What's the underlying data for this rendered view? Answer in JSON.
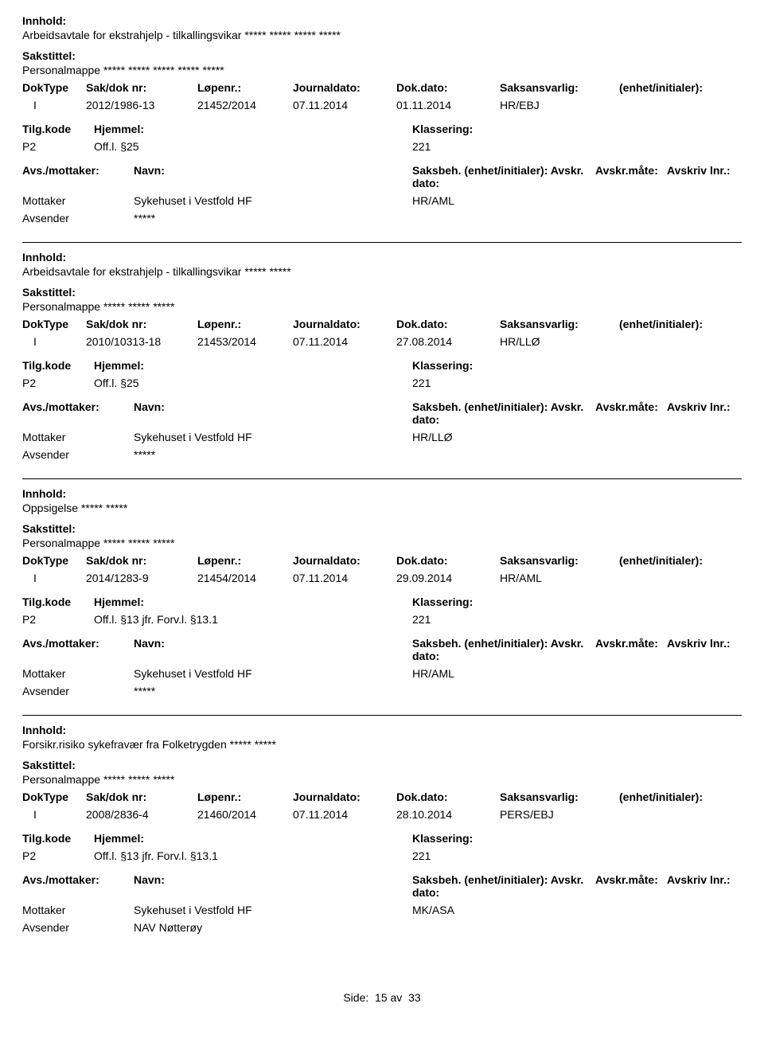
{
  "labels": {
    "innhold": "Innhold:",
    "sakstittel": "Sakstittel:",
    "hdr1": [
      "DokType",
      "Sak/dok nr:",
      "Løpenr.:",
      "Journaldato:",
      "Dok.dato:",
      "Saksansvarlig:",
      "(enhet/initialer):"
    ],
    "hdr2_left": "Tilg.kode",
    "hdr2_mid": "Hjemmel:",
    "hdr2_right": "Klassering:",
    "hdr3_left": "Avs./mottaker:",
    "hdr3_navn": "Navn:",
    "hdr3_saksbeh": "Saksbeh.",
    "hdr3_enhet": "(enhet/initialer):",
    "hdr3_avskrdato": "Avskr. dato:",
    "hdr3_avskrmate": "Avskr.måte:",
    "hdr3_avskrivlnr": "Avskriv lnr.:",
    "mottaker": "Mottaker",
    "avsender": "Avsender",
    "side": "Side:",
    "av": "av"
  },
  "footer": {
    "page": "15",
    "total": "33"
  },
  "records": [
    {
      "innhold": "Arbeidsavtale for ekstrahjelp - tilkallingsvikar ***** ***** ***** *****",
      "sakstittel": "Personalmappe ***** ***** ***** ***** *****",
      "doktype": "I",
      "sakdok": "2012/1986-13",
      "lopenr": "21452/2014",
      "journaldato": "07.11.2014",
      "dokdato": "01.11.2014",
      "saksansvarlig": "HR/EBJ",
      "enhet1": "",
      "tilgkode": "P2",
      "hjemmel": "Off.l. §25",
      "klassering": "221",
      "mottaker_navn": "Sykehuset i Vestfold HF",
      "saksbeh_enhet": "HR/AML",
      "avsender_navn": "*****"
    },
    {
      "innhold": "Arbeidsavtale for ekstrahjelp - tilkallingsvikar ***** *****",
      "sakstittel": "Personalmappe ***** ***** *****",
      "doktype": "I",
      "sakdok": "2010/10313-18",
      "lopenr": "21453/2014",
      "journaldato": "07.11.2014",
      "dokdato": "27.08.2014",
      "saksansvarlig": "HR/LLØ",
      "enhet1": "",
      "tilgkode": "P2",
      "hjemmel": "Off.l. §25",
      "klassering": "221",
      "mottaker_navn": "Sykehuset i Vestfold HF",
      "saksbeh_enhet": "HR/LLØ",
      "avsender_navn": "*****"
    },
    {
      "innhold": "Oppsigelse ***** *****",
      "sakstittel": "Personalmappe ***** ***** *****",
      "doktype": "I",
      "sakdok": "2014/1283-9",
      "lopenr": "21454/2014",
      "journaldato": "07.11.2014",
      "dokdato": "29.09.2014",
      "saksansvarlig": "HR/AML",
      "enhet1": "",
      "tilgkode": "P2",
      "hjemmel": "Off.l. §13  jfr.  Forv.l. §13.1",
      "klassering": "221",
      "mottaker_navn": "Sykehuset i Vestfold HF",
      "saksbeh_enhet": "HR/AML",
      "avsender_navn": "*****"
    },
    {
      "innhold": "Forsikr.risiko sykefravær fra Folketrygden ***** *****",
      "sakstittel": "Personalmappe ***** ***** *****",
      "doktype": "I",
      "sakdok": "2008/2836-4",
      "lopenr": "21460/2014",
      "journaldato": "07.11.2014",
      "dokdato": "28.10.2014",
      "saksansvarlig": "PERS/EBJ",
      "enhet1": "",
      "tilgkode": "P2",
      "hjemmel": "Off.l. §13  jfr.  Forv.l. §13.1",
      "klassering": "221",
      "mottaker_navn": "Sykehuset i Vestfold HF",
      "saksbeh_enhet": "MK/ASA",
      "avsender_navn": "NAV Nøtterøy"
    }
  ]
}
